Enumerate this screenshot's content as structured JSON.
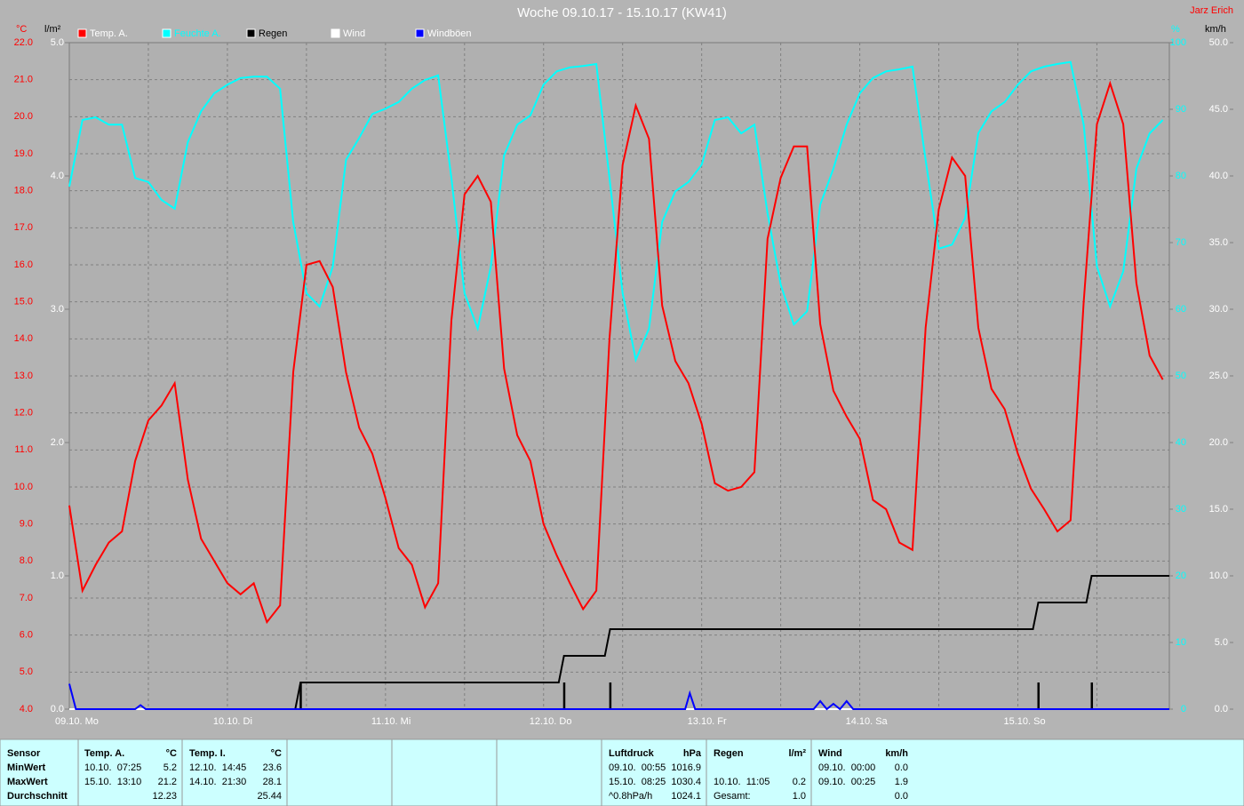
{
  "chart_data": {
    "type": "line",
    "title": "Woche 09.10.17 - 15.10.17 (KW41)",
    "author": "Jarz Erich",
    "y_label": "°C",
    "y2_label": "%",
    "y3_label": "l/m²",
    "y4_label": "km/h",
    "xlim": [
      0,
      167
    ],
    "xticks": [
      {
        "value": 0,
        "label": "09.10. Mo"
      },
      {
        "value": 24,
        "label": "10.10. Di"
      },
      {
        "value": 48,
        "label": "11.10. Mi"
      },
      {
        "value": 72,
        "label": "12.10. Do"
      },
      {
        "value": 96,
        "label": "13.10. Fr"
      },
      {
        "value": 120,
        "label": "14.10. Sa"
      },
      {
        "value": 144,
        "label": "15.10. So"
      }
    ],
    "xminor": [
      12,
      36,
      60,
      84,
      108,
      132,
      156
    ],
    "ylim": [
      4,
      22
    ],
    "yticks": [
      {
        "value": 22,
        "label": "22.0"
      },
      {
        "value": 21,
        "label": "21.0"
      },
      {
        "value": 20,
        "label": "20.0"
      },
      {
        "value": 19,
        "label": "19.0"
      },
      {
        "value": 18,
        "label": "18.0"
      },
      {
        "value": 17,
        "label": "17.0"
      },
      {
        "value": 16,
        "label": "16.0"
      },
      {
        "value": 15,
        "label": "15.0"
      },
      {
        "value": 14,
        "label": "14.0"
      },
      {
        "value": 13,
        "label": "13.0"
      },
      {
        "value": 12,
        "label": "12.0"
      },
      {
        "value": 11,
        "label": "11.0"
      },
      {
        "value": 10,
        "label": "10.0"
      },
      {
        "value": 9,
        "label": "9.0"
      },
      {
        "value": 8,
        "label": "8.0"
      },
      {
        "value": 7,
        "label": "7.0"
      },
      {
        "value": 6,
        "label": "6.0"
      },
      {
        "value": 5,
        "label": "5.0"
      },
      {
        "value": 4,
        "label": "4.0"
      }
    ],
    "y2lim": [
      0,
      100
    ],
    "y2ticks": [
      100,
      90,
      80,
      70,
      60,
      50,
      40,
      30,
      20,
      10,
      0
    ],
    "y3lim": [
      0,
      5
    ],
    "y3ticks": [
      {
        "value": 5,
        "label": "5.0"
      },
      {
        "value": 4,
        "label": "4.0"
      },
      {
        "value": 3,
        "label": "3.0"
      },
      {
        "value": 2,
        "label": "2.0"
      },
      {
        "value": 1,
        "label": "1.0"
      },
      {
        "value": 0,
        "label": "0.0"
      }
    ],
    "y4lim": [
      0,
      50
    ],
    "y4ticks": [
      {
        "value": 50,
        "label": "50.0"
      },
      {
        "value": 45,
        "label": "45.0"
      },
      {
        "value": 40,
        "label": "40.0"
      },
      {
        "value": 35,
        "label": "35.0"
      },
      {
        "value": 30,
        "label": "30.0"
      },
      {
        "value": 25,
        "label": "25.0"
      },
      {
        "value": 20,
        "label": "20.0"
      },
      {
        "value": 15,
        "label": "15.0"
      },
      {
        "value": 10,
        "label": "10.0"
      },
      {
        "value": 5,
        "label": "5.0"
      },
      {
        "value": 0,
        "label": "0.0"
      }
    ],
    "grid": true,
    "x": [
      0,
      2,
      4,
      6,
      8,
      10,
      12,
      14,
      16,
      18,
      20,
      22,
      24,
      26,
      28,
      30,
      32,
      34,
      36,
      38,
      40,
      42,
      44,
      46,
      48,
      50,
      52,
      54,
      56,
      58,
      60,
      62,
      64,
      66,
      68,
      70,
      72,
      74,
      76,
      78,
      80,
      82,
      84,
      86,
      88,
      90,
      92,
      94,
      96,
      98,
      100,
      102,
      104,
      106,
      108,
      110,
      112,
      114,
      116,
      118,
      120,
      122,
      124,
      126,
      128,
      130,
      132,
      134,
      136,
      138,
      140,
      142,
      144,
      146,
      148,
      150,
      152,
      154,
      156,
      158,
      160,
      162,
      164,
      166
    ],
    "series": [
      {
        "name": "Temp. A.",
        "color": "#ff0000",
        "legend_color": "#ffffff",
        "axis": "y",
        "values": [
          9.5,
          7.2,
          7.9,
          8.5,
          8.8,
          10.7,
          11.8,
          12.2,
          12.8,
          10.2,
          8.6,
          8.0,
          7.4,
          7.1,
          7.4,
          6.35,
          6.8,
          13.1,
          16.0,
          16.1,
          15.4,
          13.1,
          11.6,
          10.9,
          9.7,
          8.35,
          7.9,
          6.75,
          7.4,
          14.5,
          17.9,
          18.4,
          17.7,
          13.2,
          11.4,
          10.7,
          9.0,
          8.15,
          7.4,
          6.7,
          7.2,
          14.0,
          18.7,
          20.3,
          19.4,
          14.9,
          13.4,
          12.8,
          11.7,
          10.1,
          9.9,
          10.0,
          10.4,
          16.7,
          18.35,
          19.2,
          19.2,
          14.4,
          12.6,
          11.9,
          11.3,
          9.65,
          9.4,
          8.5,
          8.3,
          14.3,
          17.5,
          18.9,
          18.4,
          14.3,
          12.65,
          12.1,
          10.9,
          9.95,
          9.4,
          8.8,
          9.1,
          15.0,
          19.8,
          20.9,
          19.8,
          15.5,
          13.55,
          12.9
        ]
      },
      {
        "name": "Feuchte A.",
        "color": "#00ffff",
        "legend_color": "#00ffff",
        "axis": "y2",
        "values": [
          78.4,
          88.4,
          88.8,
          87.7,
          87.7,
          79.7,
          79.1,
          76.4,
          75.1,
          85.1,
          89.7,
          92.4,
          93.7,
          94.7,
          94.9,
          94.9,
          93.1,
          73.1,
          62.4,
          60.4,
          66.4,
          82.4,
          85.7,
          89.3,
          90.1,
          91.1,
          93.1,
          94.4,
          95.1,
          79.7,
          62.4,
          57.1,
          66.4,
          83.1,
          87.7,
          89.1,
          93.7,
          95.7,
          96.3,
          96.5,
          96.8,
          79.7,
          62.4,
          52.4,
          57.1,
          73.1,
          77.7,
          79.1,
          81.7,
          88.4,
          88.8,
          86.4,
          87.7,
          74.4,
          63.7,
          57.7,
          59.7,
          75.7,
          81.1,
          87.7,
          92.4,
          94.7,
          95.7,
          96.0,
          96.4,
          82.4,
          69.1,
          69.7,
          73.7,
          86.4,
          89.7,
          91.1,
          93.7,
          95.7,
          96.4,
          96.8,
          97.1,
          87.7,
          66.4,
          60.4,
          65.7,
          81.1,
          86.4,
          88.4
        ]
      },
      {
        "name": "Regen",
        "color": "#000000",
        "legend_color": "#000000",
        "axis": "y3",
        "x": [
          0,
          34.3,
          35.1,
          74.3,
          75.1,
          81.3,
          82.1,
          146.3,
          147.1,
          154.4,
          155.2,
          167
        ],
        "values": [
          0,
          0,
          0.2,
          0.2,
          0.4,
          0.4,
          0.6,
          0.6,
          0.8,
          0.8,
          1.0,
          1.0
        ],
        "bar_x": [
          35.1,
          75.1,
          82.1,
          147.1,
          155.2
        ],
        "bar_values": [
          0.2,
          0.2,
          0.2,
          0.2,
          0.2
        ]
      },
      {
        "name": "Wind",
        "color": "#ffffff",
        "legend_color": "#ffffff",
        "axis": "y4",
        "x": [
          0,
          167
        ],
        "values": [
          0,
          0
        ]
      },
      {
        "name": "Windböen",
        "color": "#0000ff",
        "legend_color": "#ffffff",
        "axis": "y4",
        "x": [
          0,
          1,
          10,
          10.8,
          11.6,
          93.5,
          94.2,
          95,
          113,
          114,
          115,
          116,
          117,
          118,
          119,
          167
        ],
        "values": [
          1.9,
          0,
          0,
          0.3,
          0,
          0,
          1.2,
          0,
          0,
          0.6,
          0,
          0.4,
          0,
          0.6,
          0,
          0
        ]
      }
    ]
  },
  "table": {
    "row_labels": [
      "Sensor",
      "MinWert",
      "MaxWert",
      "Durchschnitt"
    ],
    "columns": [
      {
        "title": "Temp. A.",
        "unit": "°C",
        "rows": [
          [
            "10.10.  07:25",
            "5.2"
          ],
          [
            "15.10.  13:10",
            "21.2"
          ],
          [
            null,
            "12.23"
          ]
        ]
      },
      {
        "title": "Temp. I.",
        "unit": "°C",
        "rows": [
          [
            "12.10.  14:45",
            "23.6"
          ],
          [
            "14.10.  21:30",
            "28.1"
          ],
          [
            null,
            "25.44"
          ]
        ]
      },
      {
        "title": "Luftdruck",
        "unit": "hPa",
        "rows": [
          [
            "09.10.  00:55",
            "1016.9"
          ],
          [
            "15.10.  08:25",
            "1030.4"
          ],
          [
            "^0.8hPa/h",
            "1024.1"
          ]
        ]
      },
      {
        "title": "Regen",
        "unit": "l/m²",
        "rows": [
          [
            null,
            null
          ],
          [
            "10.10.  11:05",
            "0.2"
          ],
          [
            "Gesamt:",
            "1.0"
          ]
        ]
      },
      {
        "title": "Wind",
        "unit": "km/h",
        "rows": [
          [
            "09.10.  00:00",
            "0.0"
          ],
          [
            "09.10.  00:25",
            "1.9"
          ],
          [
            null,
            "0.0"
          ]
        ]
      }
    ]
  }
}
